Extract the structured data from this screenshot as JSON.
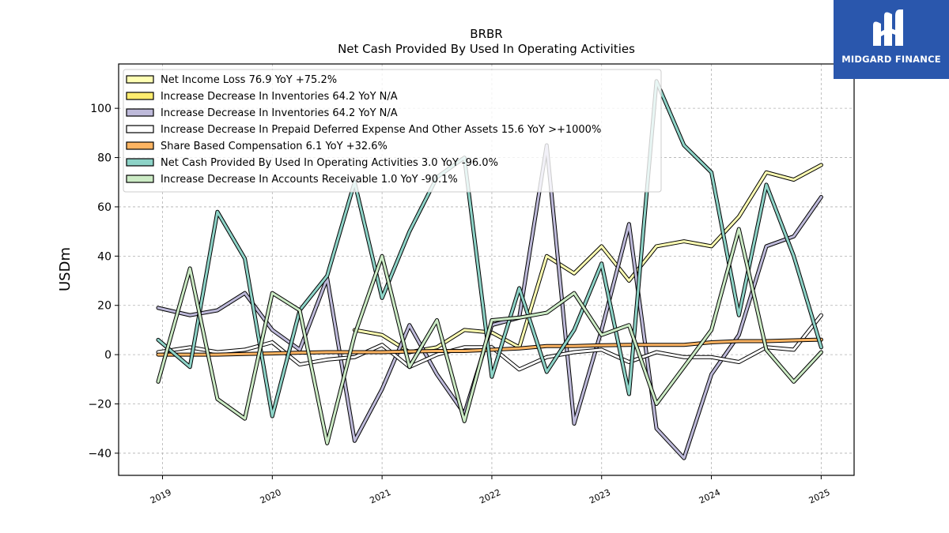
{
  "logo": {
    "text": "MIDGARD FINANCE",
    "color": "#2a57ad"
  },
  "chart_data": {
    "type": "line",
    "title": "BRBR",
    "subtitle": "Net Cash Provided By Used In Operating Activities",
    "xlabel": "",
    "ylabel": "USDm",
    "ylim": [
      -49,
      118
    ],
    "xlim": [
      2018.6,
      2025.3
    ],
    "yticks": [
      -40,
      -20,
      0,
      20,
      40,
      60,
      80,
      100
    ],
    "ytick_labels": [
      "−40",
      "−20",
      "0",
      "20",
      "40",
      "60",
      "80",
      "100"
    ],
    "xticks": [
      2019,
      2020,
      2021,
      2022,
      2023,
      2024,
      2025
    ],
    "xtick_labels": [
      "2019",
      "2020",
      "2021",
      "2022",
      "2023",
      "2024",
      "2025"
    ],
    "grid": true,
    "legend_position": "top-left",
    "x": [
      2018.96,
      2019.25,
      2019.5,
      2019.75,
      2020.0,
      2020.25,
      2020.5,
      2020.75,
      2021.0,
      2021.25,
      2021.5,
      2021.75,
      2022.0,
      2022.25,
      2022.5,
      2022.75,
      2023.0,
      2023.25,
      2023.5,
      2023.75,
      2024.0,
      2024.25,
      2024.5,
      2024.75,
      2025.0
    ],
    "series": [
      {
        "name": "Net Income Loss",
        "label": "Net Income Loss  76.9 YoY +75.2%",
        "color": "#ffffb3",
        "values": [
          null,
          null,
          null,
          null,
          null,
          null,
          null,
          10,
          8,
          1,
          3,
          10,
          9,
          3,
          40,
          33,
          44,
          30,
          44,
          46,
          44,
          56,
          74,
          71,
          77
        ]
      },
      {
        "name": "Increase Decrease In Inventories",
        "label": "Increase Decrease In Inventories  64.2 YoY N/A",
        "color": "#ffed6f",
        "values": [
          null,
          null,
          null,
          null,
          null,
          null,
          null,
          null,
          null,
          null,
          null,
          null,
          null,
          null,
          null,
          null,
          null,
          null,
          null,
          null,
          null,
          null,
          null,
          null,
          null
        ]
      },
      {
        "name": "Increase Decrease In Inventories",
        "label": "Increase Decrease In Inventories  64.2 YoY N/A",
        "color": "#bebada",
        "values": [
          19,
          16,
          18,
          25,
          10,
          2,
          31,
          -35,
          -14,
          12,
          -8,
          -24,
          12,
          15,
          85,
          -28,
          10,
          53,
          -30,
          -42,
          -8,
          8,
          44,
          48,
          64
        ]
      },
      {
        "name": "Increase Decrease In Prepaid Deferred Expense And Other Assets",
        "label": "Increase Decrease In Prepaid Deferred Expense And Other Assets  15.6 YoY >+1000%",
        "color": "#ffffff",
        "values": [
          1,
          3,
          1,
          2,
          5,
          -4,
          -2,
          -1,
          4,
          -5,
          0,
          3,
          3,
          -6,
          -1,
          1,
          2,
          -3,
          1,
          -1,
          -1,
          -3,
          3,
          2,
          16
        ]
      },
      {
        "name": "Share Based Compensation",
        "label": "Share Based Compensation  6.1 YoY +32.6%",
        "color": "#fdb462",
        "values": [
          0,
          0,
          0,
          0.3,
          0.5,
          0.8,
          1,
          1,
          1,
          1.3,
          1.5,
          1.5,
          2,
          2.5,
          3.5,
          3.5,
          3.8,
          4,
          4,
          4,
          5,
          5.5,
          5.5,
          5.8,
          6.1
        ]
      },
      {
        "name": "Net Cash Provided By Used In Operating Activities",
        "label": "Net Cash Provided By Used In Operating Activities  3.0 YoY -96.0%",
        "color": "#8dd3c7",
        "values": [
          6,
          -5,
          58,
          39,
          -25,
          18,
          32,
          70,
          23,
          50,
          72,
          80,
          -9,
          27,
          -7,
          10,
          37,
          -16,
          111,
          85,
          74,
          16,
          69,
          40,
          3
        ]
      },
      {
        "name": "Increase Decrease In Accounts Receivable",
        "label": "Increase Decrease In Accounts Receivable  1.0 YoY -90.1%",
        "color": "#ccebc5",
        "values": [
          -11,
          35,
          -18,
          -26,
          25,
          18,
          -36,
          8,
          40,
          -5,
          14,
          -27,
          14,
          15,
          17,
          25,
          8,
          12,
          -20,
          -5,
          10,
          51,
          2,
          -11,
          1
        ]
      }
    ]
  }
}
